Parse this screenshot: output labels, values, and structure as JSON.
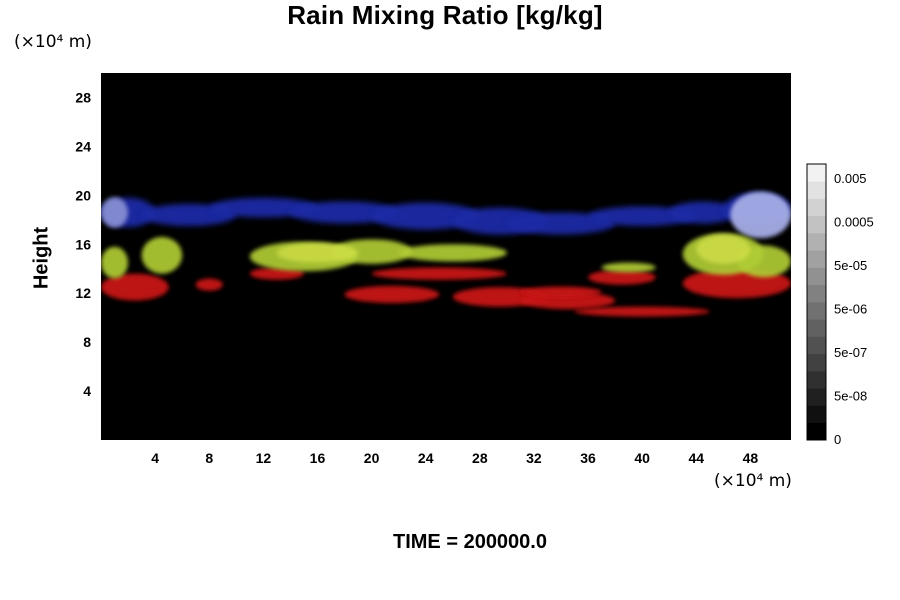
{
  "chart_data": {
    "type": "heatmap",
    "title": "Rain Mixing Ratio [kg/kg]",
    "ylabel": "Height",
    "x_unit": "(×10⁴ m)",
    "y_unit": "(×10⁴ m)",
    "xlim": [
      0,
      51
    ],
    "ylim": [
      0,
      30
    ],
    "x_ticks": [
      4,
      8,
      12,
      16,
      20,
      24,
      28,
      32,
      36,
      40,
      44,
      48
    ],
    "y_ticks": [
      4,
      8,
      12,
      16,
      20,
      24,
      28
    ],
    "footer": "TIME = 200000.0",
    "background_color": "#000000",
    "colorbar": {
      "tick_labels": [
        "0.005",
        "0.0005",
        "5e-05",
        "5e-06",
        "5e-07",
        "5e-08",
        "0"
      ],
      "levels": 16,
      "colors": [
        "#000000",
        "#f2f2f2"
      ]
    },
    "features": [
      {
        "layer": "blue cloud band",
        "color": "#1a2aa8",
        "x_range": [
          0,
          51
        ],
        "y_range": [
          16,
          20.5
        ]
      },
      {
        "layer": "light blue patches",
        "color": "#9aa2e0",
        "x_range": [
          45,
          51
        ],
        "y_range": [
          16.5,
          20.5
        ]
      },
      {
        "layer": "yellow-green band",
        "color": "#b8d23a",
        "x_range": [
          0,
          51
        ],
        "y_range": [
          13,
          17
        ]
      },
      {
        "layer": "red band",
        "color": "#cc1010",
        "x_range": [
          0,
          51
        ],
        "y_range": [
          10,
          14
        ]
      }
    ]
  }
}
